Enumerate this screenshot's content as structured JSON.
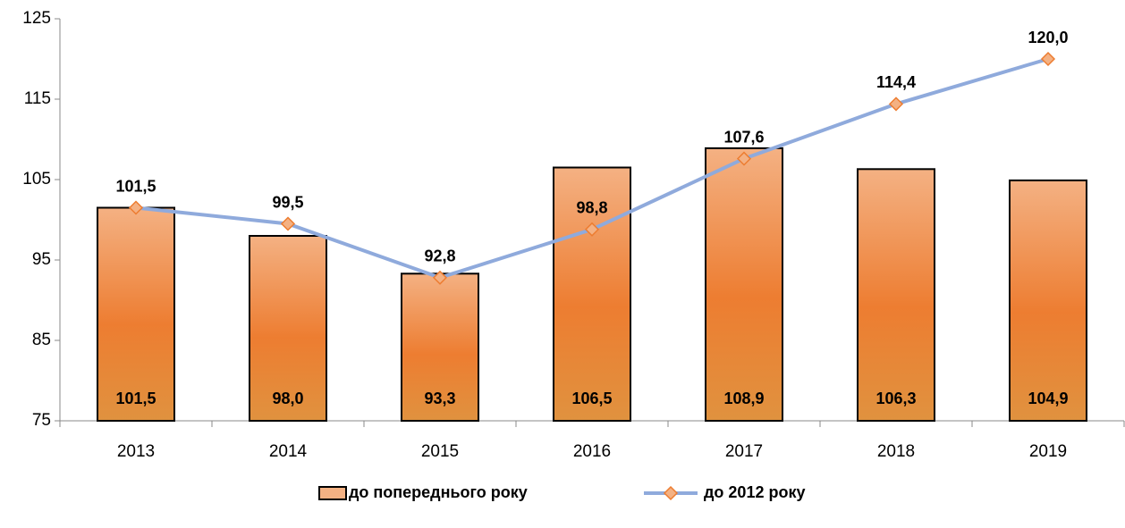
{
  "chart_data": {
    "type": "bar-line",
    "categories": [
      "2013",
      "2014",
      "2015",
      "2016",
      "2017",
      "2018",
      "2019"
    ],
    "series": [
      {
        "name": "до попереднього року",
        "type": "bar",
        "color": "#ed7d31",
        "values": [
          101.5,
          98.0,
          93.3,
          106.5,
          108.9,
          106.3,
          104.9
        ],
        "value_labels": [
          "101,5",
          "98,0",
          "93,3",
          "106,5",
          "108,9",
          "106,3",
          "104,9"
        ]
      },
      {
        "name": "до 2012 року",
        "type": "line",
        "color": "#8faadc",
        "marker_color": "#f4b183",
        "values": [
          101.5,
          99.5,
          92.8,
          98.8,
          107.6,
          114.4,
          120.0
        ],
        "value_labels": [
          "101,5",
          "99,5",
          "92,8",
          "98,8",
          "107,6",
          "114,4",
          "120,0"
        ]
      }
    ],
    "ylim": [
      75,
      125
    ],
    "yticks": [
      75,
      85,
      95,
      105,
      115,
      125
    ],
    "grid": false,
    "legend": "bottom"
  }
}
